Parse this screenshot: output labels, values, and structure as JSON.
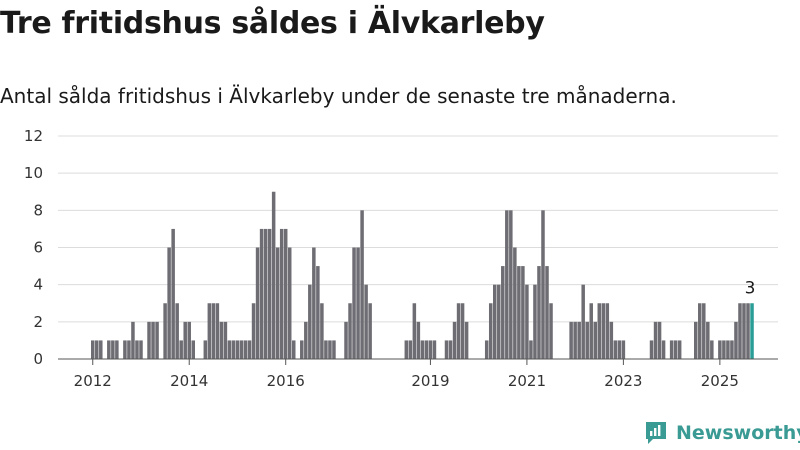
{
  "title": "Tre fritidshus såldes i Älvkarleby",
  "subtitle": "Antal sålda fritidshus i Älvkarleby under de senaste tre månaderna.",
  "brand": "Newsworthy",
  "colors": {
    "bar": "#6e6d73",
    "highlight": "#2a9d96",
    "grid": "#dcdcdc",
    "axis": "#555555"
  },
  "chart_data": {
    "type": "bar",
    "title": "Tre fritidshus såldes i Älvkarleby",
    "ylim": [
      0,
      12
    ],
    "yticks": [
      0,
      2,
      4,
      6,
      8,
      10,
      12
    ],
    "xticks": [
      {
        "label": "2012",
        "index": 0
      },
      {
        "label": "2014",
        "index": 24
      },
      {
        "label": "2016",
        "index": 48
      },
      {
        "label": "2019",
        "index": 84
      },
      {
        "label": "2021",
        "index": 108
      },
      {
        "label": "2023",
        "index": 132
      },
      {
        "label": "2025",
        "index": 156
      }
    ],
    "first_month": "2012-01",
    "last_month": "2025-09",
    "highlight_last": true,
    "last_value_label": "3",
    "grid": true,
    "values": [
      1,
      1,
      1,
      0,
      1,
      1,
      1,
      0,
      1,
      1,
      2,
      1,
      1,
      0,
      2,
      2,
      2,
      0,
      3,
      6,
      7,
      3,
      1,
      2,
      2,
      1,
      0,
      0,
      1,
      3,
      3,
      3,
      2,
      2,
      1,
      1,
      1,
      1,
      1,
      1,
      3,
      6,
      7,
      7,
      7,
      9,
      6,
      7,
      7,
      6,
      1,
      0,
      1,
      2,
      4,
      6,
      5,
      3,
      1,
      1,
      1,
      0,
      0,
      2,
      3,
      6,
      6,
      8,
      4,
      3,
      0,
      0,
      0,
      0,
      0,
      0,
      0,
      0,
      1,
      1,
      3,
      2,
      1,
      1,
      1,
      1,
      0,
      0,
      1,
      1,
      2,
      3,
      3,
      2,
      0,
      0,
      0,
      0,
      1,
      3,
      4,
      4,
      5,
      8,
      8,
      6,
      5,
      5,
      4,
      1,
      4,
      5,
      8,
      5,
      3,
      0,
      0,
      0,
      0,
      2,
      2,
      2,
      4,
      2,
      3,
      2,
      3,
      3,
      3,
      2,
      1,
      1,
      1,
      0,
      0,
      0,
      0,
      0,
      0,
      1,
      2,
      2,
      1,
      0,
      1,
      1,
      1,
      0,
      0,
      0,
      2,
      3,
      3,
      2,
      1,
      0,
      1,
      1,
      1,
      1,
      2,
      3,
      3,
      3,
      3
    ]
  }
}
